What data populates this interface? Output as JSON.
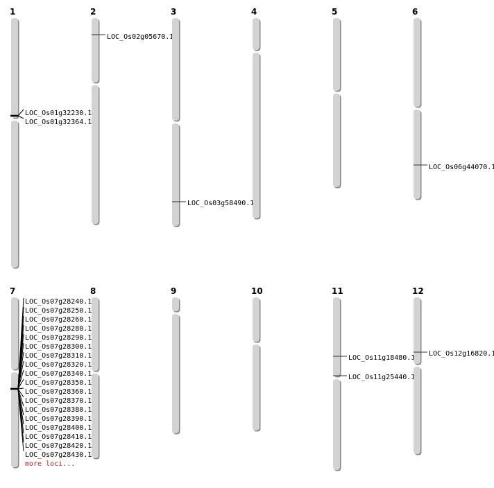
{
  "chromosomes": [
    {
      "label": "1",
      "loci": [
        "LOC_Os01g32230.1",
        "LOC_Os01g32364.1"
      ]
    },
    {
      "label": "2",
      "loci": [
        "LOC_Os02g05670.1"
      ]
    },
    {
      "label": "3",
      "loci": [
        "LOC_Os03g58490.1"
      ]
    },
    {
      "label": "4",
      "loci": []
    },
    {
      "label": "5",
      "loci": []
    },
    {
      "label": "6",
      "loci": [
        "LOC_Os06g44070.1"
      ]
    },
    {
      "label": "7",
      "loci": [
        "LOC_Os07g28240.1",
        "LOC_Os07g28250.1",
        "LOC_Os07g28260.1",
        "LOC_Os07g28280.1",
        "LOC_Os07g28290.1",
        "LOC_Os07g28300.1",
        "LOC_Os07g28310.1",
        "LOC_Os07g28320.1",
        "LOC_Os07g28340.1",
        "LOC_Os07g28350.1",
        "LOC_Os07g28360.1",
        "LOC_Os07g28370.1",
        "LOC_Os07g28380.1",
        "LOC_Os07g28390.1",
        "LOC_Os07g28400.1",
        "LOC_Os07g28410.1",
        "LOC_Os07g28420.1",
        "LOC_Os07g28430.1"
      ],
      "more_label": "more loci..."
    },
    {
      "label": "8",
      "loci": []
    },
    {
      "label": "9",
      "loci": []
    },
    {
      "label": "10",
      "loci": []
    },
    {
      "label": "11",
      "loci": [
        "LOC_Os11g18480.1",
        "LOC_Os11g25440.1"
      ]
    },
    {
      "label": "12",
      "loci": [
        "LOC_Os12g16820.1"
      ]
    }
  ],
  "colors": {
    "chromosome_fill": "#d3d3d3",
    "chromosome_shadow": "#888888",
    "marker": "#333333",
    "more_link": "#cc2222"
  }
}
